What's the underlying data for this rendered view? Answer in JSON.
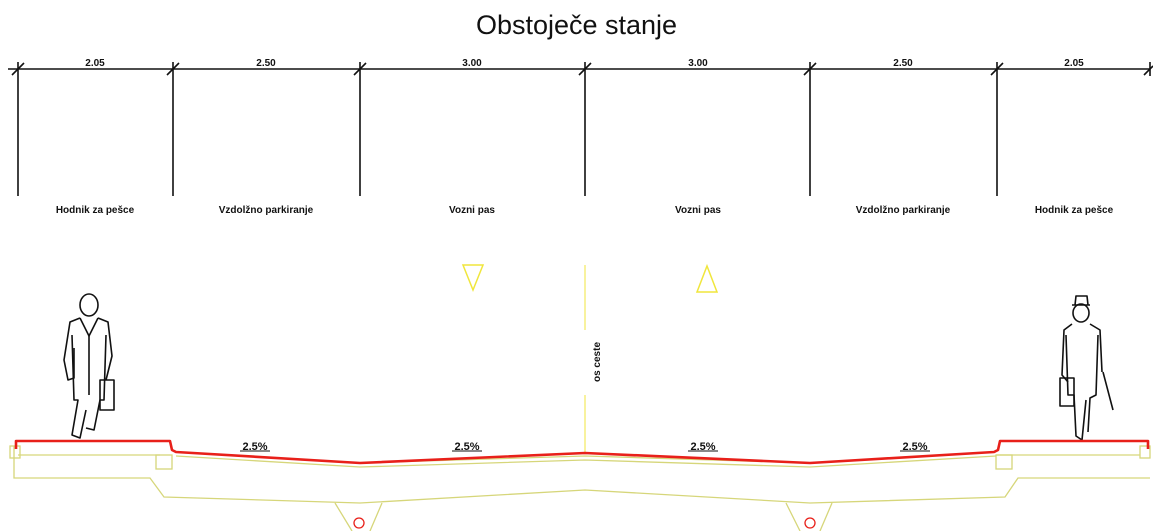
{
  "title": "Obstoječe stanje",
  "dimensions": [
    "2.05",
    "2.50",
    "3.00",
    "3.00",
    "2.50",
    "2.05"
  ],
  "zones": [
    "Hodnik za pešce",
    "Vzdolžno parkiranje",
    "Vozni pas",
    "Vozni pas",
    "Vzdolžno parkiranje",
    "Hodnik za pešce"
  ],
  "slopes": [
    "2.5%",
    "2.5%",
    "2.5%",
    "2.5%"
  ],
  "axis_label": "os ceste",
  "colors": {
    "pavement": "#e8201a",
    "structure": "#d6d67a",
    "lane_marker": "#f0e63c",
    "ink": "#111111"
  }
}
